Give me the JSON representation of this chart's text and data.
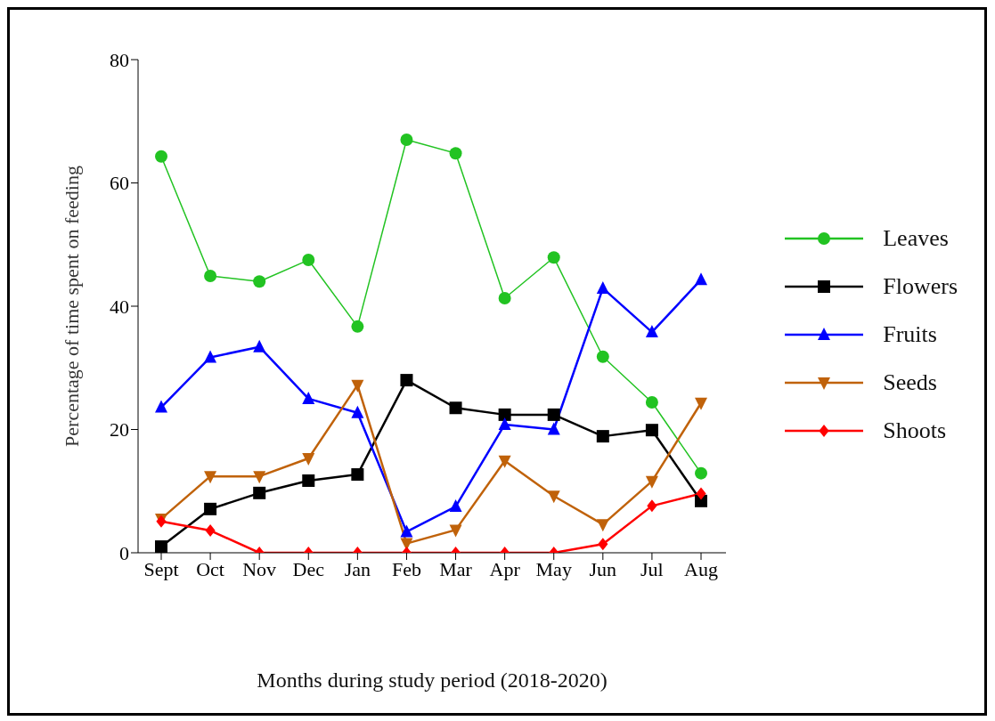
{
  "chart_data": {
    "type": "line",
    "xlabel": "Months during study period (2018-2020)",
    "ylabel": "Percentage of time spent on feeding",
    "categories": [
      "Sept",
      "Oct",
      "Nov",
      "Dec",
      "Jan",
      "Feb",
      "Mar",
      "Apr",
      "May",
      "Jun",
      "Jul",
      "Aug"
    ],
    "ylim": [
      0,
      80
    ],
    "yticks": [
      0,
      20,
      40,
      60,
      80
    ],
    "grid": false,
    "legend": "right",
    "line_style": "solid",
    "series": [
      {
        "name": "Leaves",
        "color": "#22c322",
        "marker": "circle",
        "values": [
          64.3,
          44.9,
          44.0,
          47.5,
          36.7,
          67.0,
          64.8,
          41.3,
          47.9,
          31.8,
          24.4,
          12.9
        ]
      },
      {
        "name": "Flowers",
        "color": "#000000",
        "marker": "square",
        "values": [
          1.0,
          7.1,
          9.7,
          11.7,
          12.7,
          28.0,
          23.5,
          22.4,
          22.4,
          18.9,
          19.9,
          8.4
        ]
      },
      {
        "name": "Fruits",
        "color": "#0000ff",
        "marker": "triangle",
        "values": [
          23.6,
          31.7,
          33.4,
          25.0,
          22.7,
          3.4,
          7.5,
          20.8,
          20.0,
          42.9,
          35.8,
          44.3
        ]
      },
      {
        "name": "Seeds",
        "color": "#c0620a",
        "marker": "triangle-down",
        "values": [
          5.5,
          12.4,
          12.4,
          15.3,
          27.2,
          1.5,
          3.7,
          14.9,
          9.2,
          4.6,
          11.6,
          24.3
        ]
      },
      {
        "name": "Shoots",
        "color": "#ff0000",
        "marker": "diamond",
        "values": [
          5.1,
          3.6,
          0,
          0,
          0,
          0,
          0,
          0,
          0,
          1.4,
          7.6,
          9.6
        ]
      }
    ]
  }
}
